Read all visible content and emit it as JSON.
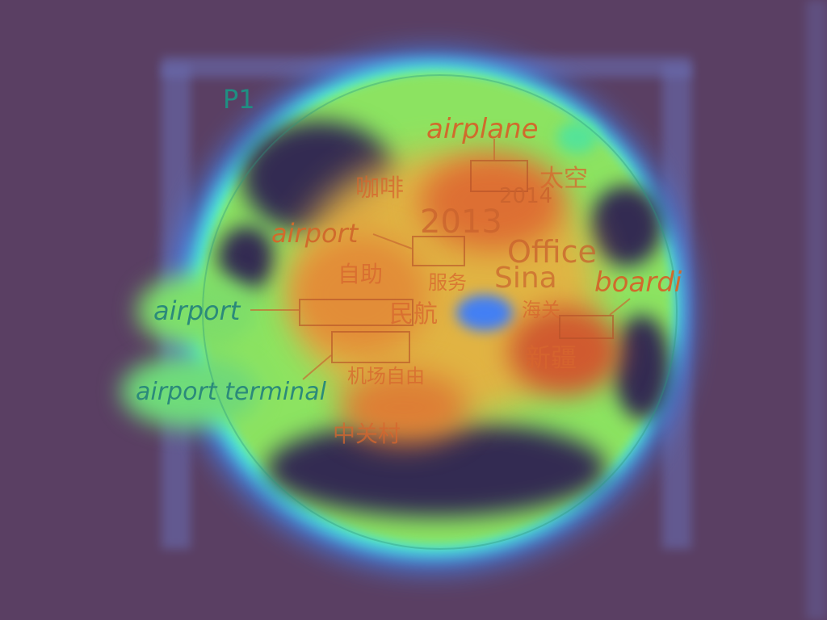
{
  "panel_label": "P1",
  "callouts": [
    {
      "key": "airplane",
      "text": "airplane"
    },
    {
      "key": "airport_top",
      "text": "airport"
    },
    {
      "key": "airport_left",
      "text": "airport"
    },
    {
      "key": "airport_terminal",
      "text": "airport terminal"
    },
    {
      "key": "boarding",
      "text": "boardi"
    }
  ],
  "cloud_words": {
    "coffee": "咖啡",
    "space": "太空",
    "y2014": "2014",
    "y2013": "2013",
    "office": "Office",
    "sina": "Sina",
    "self": "自助",
    "civil": "民航",
    "service": "服务",
    "customs": "海关",
    "xinjiang": "新疆",
    "zhongguancun": "中关村",
    "jichang": "机场自由"
  },
  "heatmap_colors": {
    "background": "#5a3f63",
    "cold": "#2e2050",
    "low": "#3f7bff",
    "mid": "#53e89b",
    "high": "#f29b35",
    "peak": "#d8532a"
  }
}
